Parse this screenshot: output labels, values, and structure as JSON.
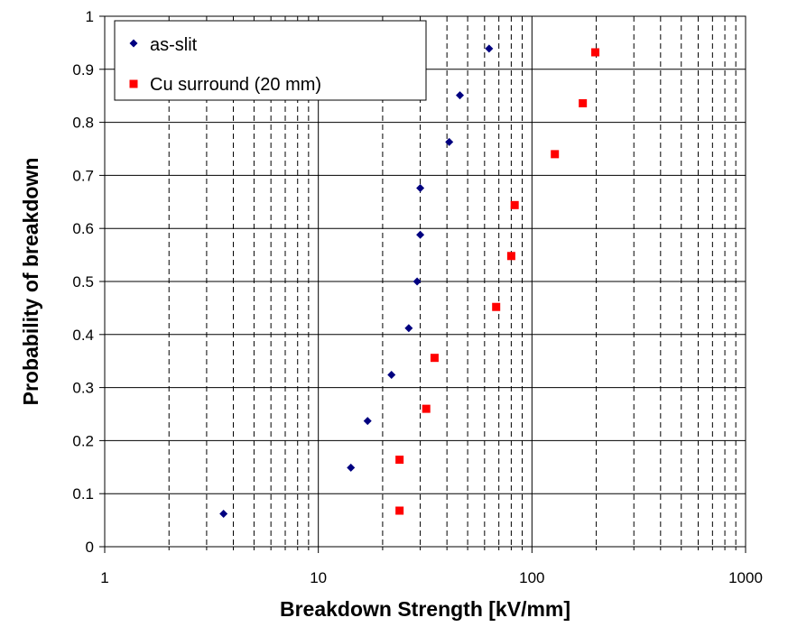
{
  "chart_data": {
    "type": "scatter",
    "title": "",
    "xlabel": "Breakdown Strength [kV/mm]",
    "ylabel": "Probability of breakdown",
    "xscale": "log",
    "xlim": [
      1,
      1000
    ],
    "ylim": [
      0,
      1
    ],
    "xticks": [
      1,
      10,
      100,
      1000
    ],
    "xtick_labels": [
      "1",
      "10",
      "100",
      "1000"
    ],
    "yticks": [
      0,
      0.1,
      0.2,
      0.3,
      0.4,
      0.5,
      0.6,
      0.7,
      0.8,
      0.9,
      1
    ],
    "ytick_labels": [
      "0",
      "0.1",
      "0.2",
      "0.3",
      "0.4",
      "0.5",
      "0.6",
      "0.7",
      "0.8",
      "0.9",
      "1"
    ],
    "grid": {
      "horizontal_major": true,
      "vertical_major": true,
      "vertical_minor_dashed": true
    },
    "legend_position": "top-left",
    "series": [
      {
        "name": "as-slit",
        "marker": "diamond",
        "color": "#000080",
        "points": [
          [
            3.6,
            0.062
          ],
          [
            14.2,
            0.149
          ],
          [
            17.0,
            0.237
          ],
          [
            22.0,
            0.324
          ],
          [
            26.5,
            0.412
          ],
          [
            29.0,
            0.5
          ],
          [
            30.0,
            0.588
          ],
          [
            30.0,
            0.676
          ],
          [
            41.0,
            0.763
          ],
          [
            46.0,
            0.851
          ],
          [
            63.0,
            0.939
          ]
        ]
      },
      {
        "name": "Cu surround (20 mm)",
        "marker": "square",
        "color": "#ff0000",
        "points": [
          [
            24.0,
            0.068
          ],
          [
            24.0,
            0.164
          ],
          [
            32.0,
            0.26
          ],
          [
            35.0,
            0.356
          ],
          [
            68.0,
            0.452
          ],
          [
            80.0,
            0.548
          ],
          [
            83.0,
            0.644
          ],
          [
            128.0,
            0.74
          ],
          [
            173.0,
            0.836
          ],
          [
            198.0,
            0.932
          ]
        ]
      }
    ]
  }
}
